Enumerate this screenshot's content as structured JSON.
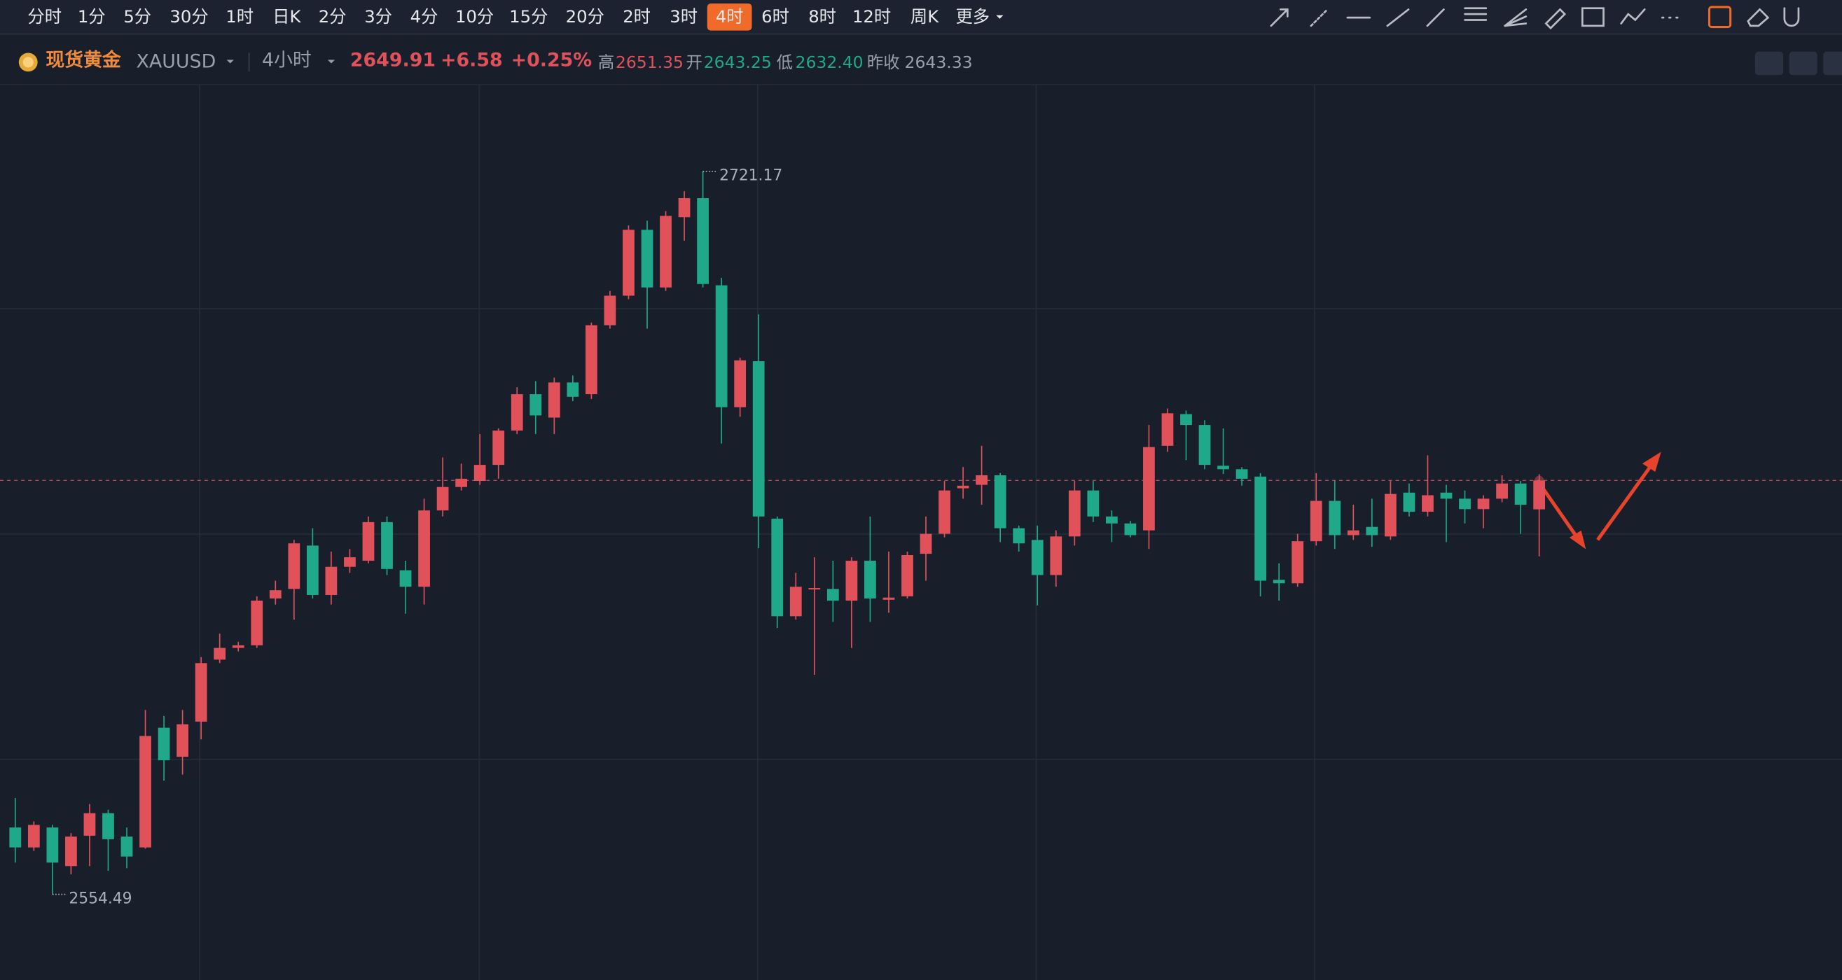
{
  "toolbar": {
    "intervals": [
      "分时",
      "1分",
      "5分",
      "30分",
      "1时",
      "日K",
      "2分",
      "3分",
      "4分",
      "10分",
      "15分",
      "20分",
      "2时",
      "3时",
      "4时",
      "6时",
      "8时",
      "12时",
      "周K",
      "更多"
    ],
    "active": 14
  },
  "header": {
    "name": "现货黄金",
    "symbol": "XAUUSD",
    "interval": "4小时",
    "price": "2649.91",
    "change": "+6.58",
    "change_pct": "+0.25%",
    "high_label": "高",
    "high": "2651.35",
    "open_label": "开",
    "open": "2643.25",
    "low_label": "低",
    "low": "2632.40",
    "prev_label": "昨收",
    "prev": "2643.33"
  },
  "chart_data": {
    "type": "candlestick",
    "up_color": "#e0515a",
    "down_color": "#1fa88a",
    "max_label": 2721.17,
    "min_label": 2554.49,
    "candles": [
      [
        2569.9,
        2576.7,
        2561.8,
        2565.3
      ],
      [
        2565.3,
        2571.3,
        2564.5,
        2570.5
      ],
      [
        2569.9,
        2570.5,
        2554.49,
        2561.8
      ],
      [
        2561.0,
        2568.6,
        2559.1,
        2567.8
      ],
      [
        2568.0,
        2575.3,
        2561.0,
        2573.2
      ],
      [
        2573.2,
        2574.0,
        2559.9,
        2567.2
      ],
      [
        2567.8,
        2569.9,
        2560.5,
        2563.2
      ],
      [
        2565.3,
        2597.0,
        2565.0,
        2591.0
      ],
      [
        2592.9,
        2595.6,
        2580.7,
        2585.4
      ],
      [
        2586.2,
        2597.0,
        2582.1,
        2593.7
      ],
      [
        2594.3,
        2609.2,
        2590.2,
        2607.8
      ],
      [
        2608.6,
        2614.6,
        2607.8,
        2611.3
      ],
      [
        2611.3,
        2612.7,
        2610.5,
        2611.9
      ],
      [
        2611.9,
        2623.2,
        2611.3,
        2622.2
      ],
      [
        2622.7,
        2626.8,
        2621.3,
        2624.6
      ],
      [
        2624.9,
        2636.2,
        2617.8,
        2635.4
      ],
      [
        2634.9,
        2638.9,
        2622.7,
        2623.5
      ],
      [
        2623.5,
        2633.5,
        2621.3,
        2630.0
      ],
      [
        2630.0,
        2634.1,
        2628.6,
        2632.2
      ],
      [
        2631.4,
        2641.6,
        2630.8,
        2640.3
      ],
      [
        2640.3,
        2641.6,
        2628.1,
        2629.5
      ],
      [
        2629.2,
        2631.4,
        2619.2,
        2625.4
      ],
      [
        2625.4,
        2645.7,
        2621.3,
        2643.0
      ],
      [
        2643.0,
        2655.2,
        2641.6,
        2648.4
      ],
      [
        2648.4,
        2653.8,
        2647.6,
        2650.3
      ],
      [
        2649.8,
        2660.6,
        2648.9,
        2653.5
      ],
      [
        2653.5,
        2661.9,
        2650.3,
        2661.4
      ],
      [
        2661.4,
        2671.4,
        2660.6,
        2669.8
      ],
      [
        2669.8,
        2672.8,
        2660.6,
        2664.9
      ],
      [
        2664.4,
        2673.6,
        2660.6,
        2672.5
      ],
      [
        2672.5,
        2674.1,
        2668.2,
        2669.2
      ],
      [
        2669.8,
        2686.3,
        2668.7,
        2685.7
      ],
      [
        2685.7,
        2693.6,
        2684.9,
        2692.5
      ],
      [
        2692.5,
        2708.7,
        2691.7,
        2707.7
      ],
      [
        2707.7,
        2709.8,
        2684.9,
        2694.4
      ],
      [
        2694.4,
        2712.0,
        2693.6,
        2710.9
      ],
      [
        2710.6,
        2716.6,
        2705.2,
        2715.0
      ],
      [
        2715.0,
        2721.17,
        2694.4,
        2695.2
      ],
      [
        2694.9,
        2696.6,
        2658.4,
        2666.8
      ],
      [
        2666.8,
        2678.2,
        2664.6,
        2677.6
      ],
      [
        2677.4,
        2688.2,
        2634.3,
        2641.6
      ],
      [
        2641.1,
        2641.6,
        2615.9,
        2618.6
      ],
      [
        2618.6,
        2628.6,
        2617.8,
        2625.4
      ],
      [
        2624.9,
        2632.2,
        2605.1,
        2625.1
      ],
      [
        2624.9,
        2631.4,
        2617.3,
        2622.2
      ],
      [
        2622.2,
        2632.2,
        2611.3,
        2631.4
      ],
      [
        2631.4,
        2641.6,
        2617.3,
        2622.7
      ],
      [
        2622.4,
        2633.5,
        2619.4,
        2622.9
      ],
      [
        2623.2,
        2633.5,
        2622.7,
        2632.7
      ],
      [
        2633.0,
        2641.6,
        2626.8,
        2637.6
      ],
      [
        2637.6,
        2649.8,
        2636.8,
        2647.6
      ],
      [
        2648.1,
        2653.0,
        2645.7,
        2648.7
      ],
      [
        2648.9,
        2657.9,
        2644.3,
        2651.1
      ],
      [
        2651.1,
        2651.6,
        2635.7,
        2638.9
      ],
      [
        2638.9,
        2639.5,
        2633.5,
        2635.4
      ],
      [
        2636.2,
        2639.5,
        2621.1,
        2628.1
      ],
      [
        2628.1,
        2638.4,
        2625.4,
        2637.0
      ],
      [
        2637.0,
        2649.8,
        2634.9,
        2647.6
      ],
      [
        2647.6,
        2649.8,
        2640.3,
        2641.6
      ],
      [
        2641.6,
        2643.0,
        2635.7,
        2640.0
      ],
      [
        2640.0,
        2640.6,
        2636.8,
        2637.3
      ],
      [
        2638.4,
        2662.7,
        2634.1,
        2657.6
      ],
      [
        2657.9,
        2666.5,
        2656.5,
        2665.4
      ],
      [
        2665.2,
        2666.0,
        2654.6,
        2662.7
      ],
      [
        2662.7,
        2663.8,
        2652.5,
        2653.5
      ],
      [
        2653.3,
        2661.9,
        2651.4,
        2652.5
      ],
      [
        2652.5,
        2653.0,
        2648.7,
        2650.3
      ],
      [
        2650.8,
        2651.6,
        2623.2,
        2626.8
      ],
      [
        2627.0,
        2630.8,
        2622.2,
        2626.2
      ],
      [
        2626.2,
        2637.6,
        2625.4,
        2635.9
      ],
      [
        2635.9,
        2651.6,
        2634.9,
        2645.2
      ],
      [
        2645.2,
        2649.8,
        2634.1,
        2637.3
      ],
      [
        2637.3,
        2644.3,
        2636.2,
        2638.4
      ],
      [
        2639.2,
        2645.7,
        2634.6,
        2637.3
      ],
      [
        2637.0,
        2649.8,
        2636.2,
        2646.8
      ],
      [
        2647.1,
        2649.2,
        2641.6,
        2642.7
      ],
      [
        2642.7,
        2655.7,
        2641.6,
        2646.5
      ],
      [
        2647.1,
        2648.9,
        2635.7,
        2645.7
      ],
      [
        2645.7,
        2647.6,
        2640.0,
        2643.3
      ],
      [
        2643.3,
        2646.5,
        2638.9,
        2645.7
      ],
      [
        2645.7,
        2651.1,
        2644.9,
        2649.2
      ],
      [
        2649.2,
        2649.8,
        2637.6,
        2644.3
      ],
      [
        2643.25,
        2651.35,
        2632.4,
        2649.91
      ]
    ]
  }
}
